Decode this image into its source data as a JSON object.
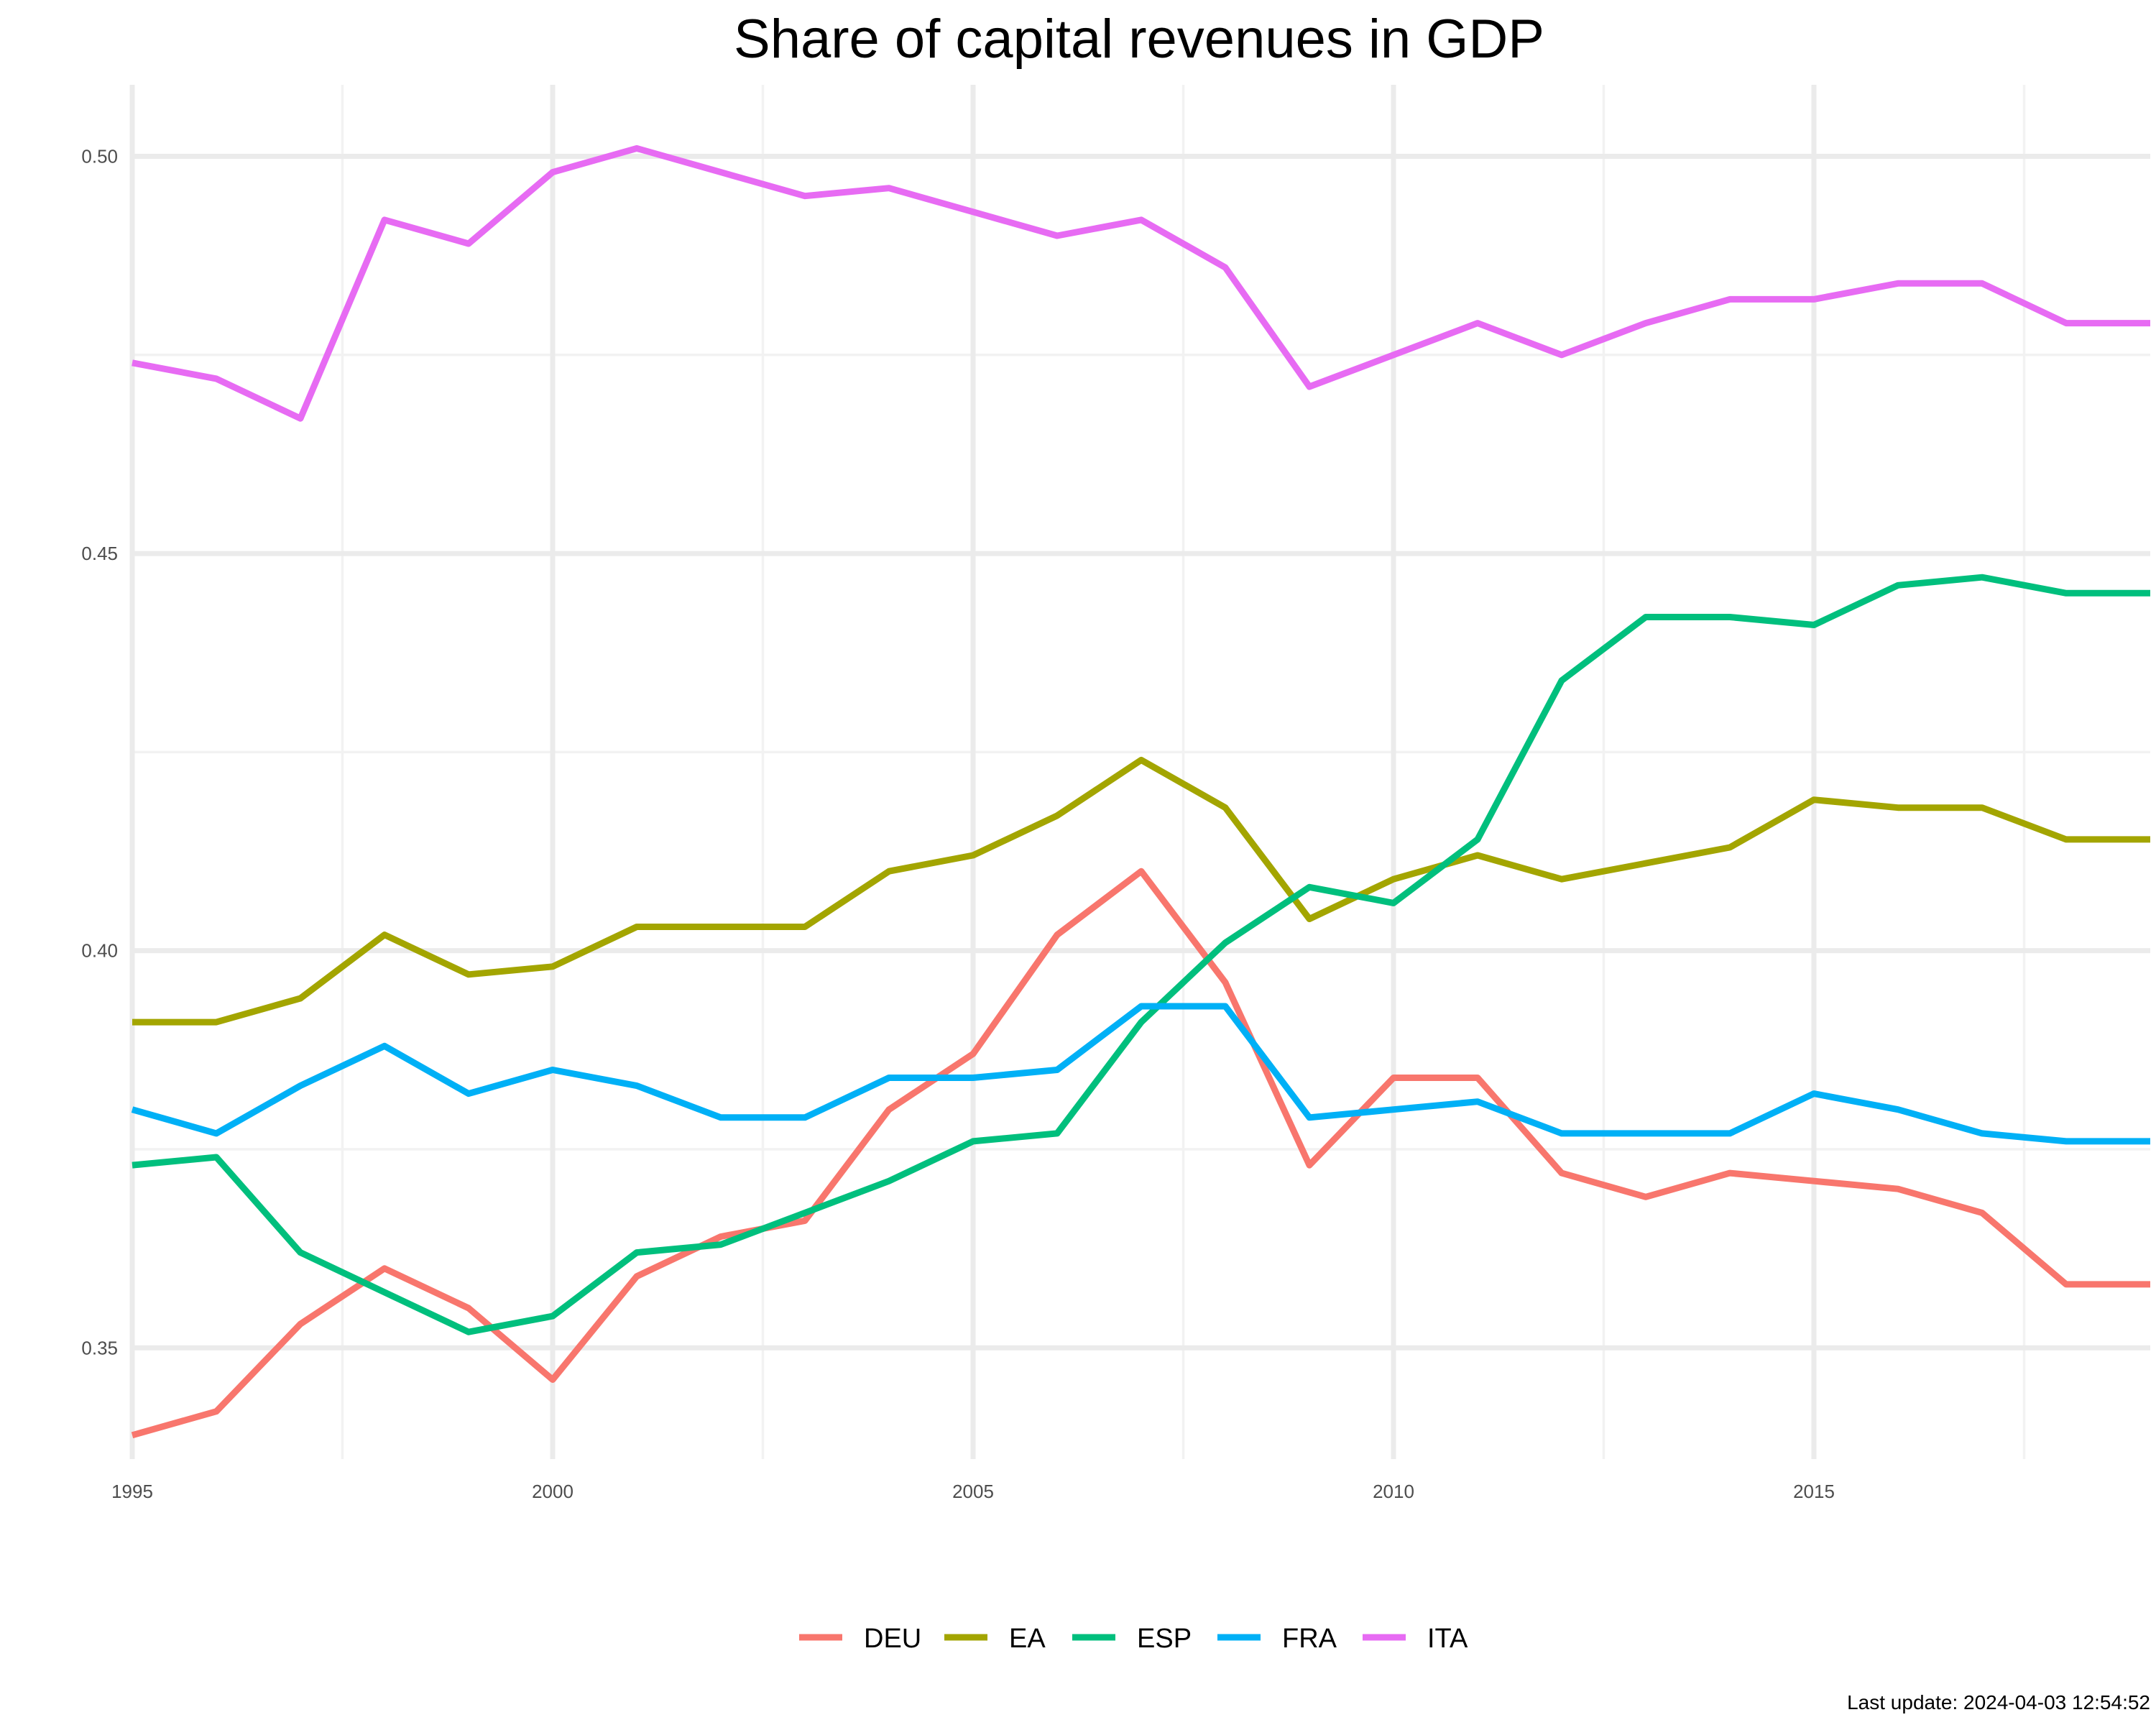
{
  "chart_data": {
    "type": "line",
    "title": "Share of capital revenues in GDP",
    "xlabel": "",
    "ylabel": "",
    "xlim": [
      1995,
      2019
    ],
    "ylim": [
      0.336,
      0.509
    ],
    "x_ticks": [
      1995,
      2000,
      2005,
      2010,
      2015
    ],
    "x_tick_labels": [
      "1995",
      "2000",
      "2005",
      "2010",
      "2015"
    ],
    "y_ticks": [
      0.35,
      0.4,
      0.45,
      0.5
    ],
    "y_tick_labels": [
      "0.35",
      "0.40",
      "0.45",
      "0.50"
    ],
    "grid": true,
    "legend_position": "bottom",
    "x": [
      1995,
      1996,
      1997,
      1998,
      1999,
      2000,
      2001,
      2002,
      2003,
      2004,
      2005,
      2006,
      2007,
      2008,
      2009,
      2010,
      2011,
      2012,
      2013,
      2014,
      2015,
      2016,
      2017,
      2018,
      2019
    ],
    "series": [
      {
        "name": "DEU",
        "color": "#F8766D",
        "values": [
          0.339,
          0.342,
          0.353,
          0.36,
          0.355,
          0.346,
          0.359,
          0.364,
          0.366,
          0.38,
          0.387,
          0.402,
          0.41,
          0.396,
          0.373,
          0.384,
          0.384,
          0.372,
          0.369,
          0.372,
          0.371,
          0.37,
          0.367,
          0.358,
          0.358
        ]
      },
      {
        "name": "EA",
        "color": "#A3A500",
        "values": [
          0.391,
          0.391,
          0.394,
          0.402,
          0.397,
          0.398,
          0.403,
          0.403,
          0.403,
          0.41,
          0.412,
          0.417,
          0.424,
          0.418,
          0.404,
          0.409,
          0.412,
          0.409,
          0.411,
          0.413,
          0.419,
          0.418,
          0.418,
          0.414,
          0.414
        ]
      },
      {
        "name": "ESP",
        "color": "#00BF7D",
        "values": [
          0.373,
          0.374,
          0.362,
          0.357,
          0.352,
          0.354,
          0.362,
          0.363,
          0.367,
          0.371,
          0.376,
          0.377,
          0.391,
          0.401,
          0.408,
          0.406,
          0.414,
          0.434,
          0.442,
          0.442,
          0.441,
          0.446,
          0.447,
          0.445,
          0.445
        ]
      },
      {
        "name": "FRA",
        "color": "#00B0F6",
        "values": [
          0.38,
          0.377,
          0.383,
          0.388,
          0.382,
          0.385,
          0.383,
          0.379,
          0.379,
          0.384,
          0.384,
          0.385,
          0.393,
          0.393,
          0.379,
          0.38,
          0.381,
          0.377,
          0.377,
          0.377,
          0.382,
          0.38,
          0.377,
          0.376,
          0.376
        ]
      },
      {
        "name": "ITA",
        "color": "#E76BF3",
        "values": [
          0.474,
          0.472,
          0.467,
          0.492,
          0.489,
          0.498,
          0.501,
          0.498,
          0.495,
          0.496,
          0.493,
          0.49,
          0.492,
          0.486,
          0.471,
          0.475,
          0.479,
          0.475,
          0.479,
          0.482,
          0.482,
          0.484,
          0.484,
          0.479,
          0.479
        ]
      }
    ],
    "caption": "Last update: 2024-04-03 12:54:52"
  }
}
